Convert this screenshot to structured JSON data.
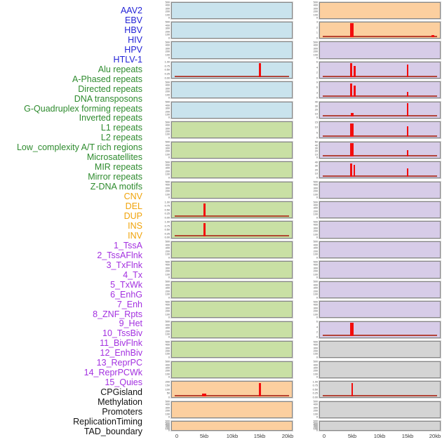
{
  "chart_data": {
    "type": "bar",
    "title": "",
    "description_visible_text_only": "Grid of 44 mini enrichment profiles (two columns of 22 panels) sharing a 0-20kb x axis; red bars mark enrichment peaks.",
    "x_axis": {
      "ticks": [
        "0",
        "5kb",
        "10kb",
        "15kb",
        "20kb"
      ],
      "range_kb": [
        0,
        20
      ]
    },
    "colors": {
      "virus": "#2323d6",
      "repeat": "#2e8b2e",
      "sv": "#f0a30a",
      "chromatin": "#a330e0",
      "other": "#111111",
      "panel_virus": "#c9e3ed",
      "panel_repeat": "#c9e0a4",
      "panel_sv": "#fccf9f",
      "panel_chromatin": "#d7cce8",
      "panel_other": "#d4d4d4",
      "spike_red": "#f30d0d",
      "baseline_red": "#ac2c1c"
    },
    "rows": [
      {
        "label": "AAV2",
        "group": "virus",
        "yticks": [
          "500",
          "400",
          "300",
          "200",
          "100",
          "0"
        ],
        "baseline": false,
        "bars": []
      },
      {
        "label": "EBV",
        "group": "virus",
        "yticks": [
          "500",
          "400",
          "300",
          "200",
          "100",
          "0"
        ],
        "baseline": false,
        "bars": []
      },
      {
        "label": "HBV",
        "group": "virus",
        "yticks": [
          "500",
          "400",
          "300",
          "200",
          "100",
          "0"
        ],
        "baseline": false,
        "bars": []
      },
      {
        "label": "HIV",
        "group": "virus",
        "yticks": [
          "1.00",
          "0.75",
          "0.50",
          "0.25",
          "0.00"
        ],
        "baseline": true,
        "bars": [
          {
            "x_kb": 15,
            "h": 1.0,
            "w": 3
          }
        ]
      },
      {
        "label": "HPV",
        "group": "virus",
        "yticks": [
          "500",
          "400",
          "300",
          "200",
          "100",
          "0"
        ],
        "baseline": false,
        "bars": []
      },
      {
        "label": "HTLV-1",
        "group": "virus",
        "yticks": [
          "500",
          "400",
          "300",
          "200",
          "100",
          "0"
        ],
        "baseline": false,
        "bars": []
      },
      {
        "label": "Alu repeats",
        "group": "repeat",
        "yticks": [
          "500",
          "400",
          "300",
          "200",
          "100",
          "0"
        ],
        "baseline": false,
        "bars": []
      },
      {
        "label": "A-Phased repeats",
        "group": "repeat",
        "yticks": [
          "500",
          "400",
          "300",
          "200",
          "100",
          "0"
        ],
        "baseline": false,
        "bars": []
      },
      {
        "label": "Directed repeats",
        "group": "repeat",
        "yticks": [
          "500",
          "400",
          "300",
          "200",
          "100",
          "0"
        ],
        "baseline": false,
        "bars": []
      },
      {
        "label": "DNA transposons",
        "group": "repeat",
        "yticks": [
          "500",
          "400",
          "300",
          "200",
          "100",
          "0"
        ],
        "baseline": false,
        "bars": []
      },
      {
        "label": "G-Quadruplex forming repeats",
        "group": "repeat",
        "yticks": [
          "1.00",
          "0.75",
          "0.50",
          "0.25",
          "0.00"
        ],
        "baseline": true,
        "bars": [
          {
            "x_kb": 5,
            "h": 1.0,
            "w": 3
          }
        ]
      },
      {
        "label": "Inverted repeats",
        "group": "repeat",
        "yticks": [
          "1.00",
          "0.75",
          "0.50",
          "0.25",
          "0.00"
        ],
        "baseline": true,
        "bars": [
          {
            "x_kb": 5,
            "h": 1.0,
            "w": 3
          }
        ]
      },
      {
        "label": "L1 repeats",
        "group": "repeat",
        "yticks": [
          "500",
          "400",
          "300",
          "200",
          "100",
          "0"
        ],
        "baseline": false,
        "bars": []
      },
      {
        "label": "L2 repeats",
        "group": "repeat",
        "yticks": [
          "500",
          "400",
          "300",
          "200",
          "100",
          "0"
        ],
        "baseline": false,
        "bars": []
      },
      {
        "label": "Low_complexity A/T rich regions",
        "group": "repeat",
        "yticks": [
          "500",
          "400",
          "300",
          "200",
          "100",
          "0"
        ],
        "baseline": false,
        "bars": []
      },
      {
        "label": "Microsatellites",
        "group": "repeat",
        "yticks": [
          "500",
          "400",
          "300",
          "200",
          "100",
          "0"
        ],
        "baseline": false,
        "bars": []
      },
      {
        "label": "MIR repeats",
        "group": "repeat",
        "yticks": [
          "500",
          "400",
          "300",
          "200",
          "100",
          "0"
        ],
        "baseline": false,
        "bars": []
      },
      {
        "label": "Mirror repeats",
        "group": "repeat",
        "yticks": [
          "500",
          "400",
          "300",
          "200",
          "100",
          "0"
        ],
        "baseline": false,
        "bars": []
      },
      {
        "label": "Z-DNA motifs",
        "group": "repeat",
        "yticks": [
          "500",
          "400",
          "300",
          "200",
          "100",
          "0"
        ],
        "baseline": false,
        "bars": []
      },
      {
        "label": "CNV",
        "group": "sv",
        "yticks": [
          "200",
          "150",
          "100",
          "50",
          "0"
        ],
        "baseline": true,
        "bars": [
          {
            "x_kb": 5,
            "h": 0.18,
            "w": 6
          },
          {
            "x_kb": 15,
            "h": 1.0,
            "w": 3
          }
        ]
      },
      {
        "label": "DEL",
        "group": "sv",
        "yticks": [
          "500",
          "400",
          "300",
          "200",
          "100",
          "0"
        ],
        "baseline": false,
        "bars": []
      },
      {
        "label": "DUP",
        "group": "sv",
        "yticks": [
          "600",
          "500",
          "400",
          "300",
          "200",
          "100",
          "0"
        ],
        "baseline": false,
        "bars": []
      },
      {
        "label": "INS",
        "group": "sv",
        "yticks": [
          "500",
          "400",
          "300",
          "200",
          "100",
          "0"
        ],
        "baseline": false,
        "bars": []
      },
      {
        "label": "INV",
        "group": "sv",
        "yticks": [
          "3",
          "2",
          "1",
          "0"
        ],
        "baseline": true,
        "bars": [
          {
            "x_kb": 5,
            "h": 1.0,
            "w": 5
          },
          {
            "x_kb": 19.6,
            "h": 0.12,
            "w": 4
          }
        ]
      },
      {
        "label": "1_TssA",
        "group": "chromatin",
        "yticks": [
          "500",
          "400",
          "300",
          "200",
          "100",
          "0"
        ],
        "baseline": false,
        "bars": []
      },
      {
        "label": "2_TssAFlnk",
        "group": "chromatin",
        "yticks": [
          "6",
          "4",
          "2",
          "0"
        ],
        "baseline": true,
        "bars": [
          {
            "x_kb": 4.9,
            "h": 1.0,
            "w": 3
          },
          {
            "x_kb": 5.5,
            "h": 0.8,
            "w": 3
          },
          {
            "x_kb": 15,
            "h": 0.9,
            "w": 2
          }
        ]
      },
      {
        "label": "3_TxFlnk",
        "group": "chromatin",
        "yticks": [
          "9",
          "6",
          "3",
          "0"
        ],
        "baseline": true,
        "bars": [
          {
            "x_kb": 4.9,
            "h": 1.0,
            "w": 3
          },
          {
            "x_kb": 5.5,
            "h": 0.85,
            "w": 3
          },
          {
            "x_kb": 15,
            "h": 0.38,
            "w": 2
          }
        ]
      },
      {
        "label": "4_Tx",
        "group": "chromatin",
        "yticks": [
          "40",
          "30",
          "20",
          "10",
          "0"
        ],
        "baseline": true,
        "bars": [
          {
            "x_kb": 5,
            "h": 0.28,
            "w": 4
          },
          {
            "x_kb": 15,
            "h": 1.0,
            "w": 2
          }
        ]
      },
      {
        "label": "5_TxWk",
        "group": "chromatin",
        "yticks": [
          "15",
          "10",
          "5",
          "0"
        ],
        "baseline": true,
        "bars": [
          {
            "x_kb": 5,
            "h": 1.0,
            "w": 5
          },
          {
            "x_kb": 15,
            "h": 0.8,
            "w": 2
          }
        ]
      },
      {
        "label": "6_EnhG",
        "group": "chromatin",
        "yticks": [
          "50",
          "40",
          "30",
          "20",
          "10",
          "0"
        ],
        "baseline": true,
        "bars": [
          {
            "x_kb": 5,
            "h": 1.0,
            "w": 5
          },
          {
            "x_kb": 15,
            "h": 0.5,
            "w": 2
          }
        ]
      },
      {
        "label": "7_Enh",
        "group": "chromatin",
        "yticks": [
          "40",
          "30",
          "20",
          "10",
          "0"
        ],
        "baseline": true,
        "bars": [
          {
            "x_kb": 4.9,
            "h": 1.0,
            "w": 3
          },
          {
            "x_kb": 5.5,
            "h": 0.85,
            "w": 2
          },
          {
            "x_kb": 15,
            "h": 0.62,
            "w": 2
          }
        ]
      },
      {
        "label": "8_ZNF_Rpts",
        "group": "chromatin",
        "yticks": [
          "500",
          "400",
          "300",
          "200",
          "100",
          "0"
        ],
        "baseline": false,
        "bars": []
      },
      {
        "label": "9_Het",
        "group": "chromatin",
        "yticks": [
          "500",
          "400",
          "300",
          "200",
          "100",
          "0"
        ],
        "baseline": false,
        "bars": []
      },
      {
        "label": "10_TssBiv",
        "group": "chromatin",
        "yticks": [
          "500",
          "400",
          "300",
          "200",
          "100",
          "0"
        ],
        "baseline": false,
        "bars": []
      },
      {
        "label": "11_BivFlnk",
        "group": "chromatin",
        "yticks": [
          "500",
          "400",
          "300",
          "200",
          "100",
          "0"
        ],
        "baseline": false,
        "bars": []
      },
      {
        "label": "12_EnhBiv",
        "group": "chromatin",
        "yticks": [
          "500",
          "400",
          "300",
          "200",
          "100",
          "0"
        ],
        "baseline": false,
        "bars": []
      },
      {
        "label": "13_ReprPC",
        "group": "chromatin",
        "yticks": [
          "500",
          "400",
          "300",
          "200",
          "100",
          "0"
        ],
        "baseline": false,
        "bars": []
      },
      {
        "label": "14_ReprPCWk",
        "group": "chromatin",
        "yticks": [
          "500",
          "400",
          "300",
          "200",
          "100",
          "0"
        ],
        "baseline": false,
        "bars": []
      },
      {
        "label": "15_Quies",
        "group": "chromatin",
        "yticks": [
          "6",
          "4",
          "2",
          "0"
        ],
        "baseline": true,
        "bars": [
          {
            "x_kb": 5,
            "h": 1.0,
            "w": 5
          }
        ]
      },
      {
        "label": "CPGisland",
        "group": "other",
        "yticks": [
          "500",
          "400",
          "300",
          "200",
          "100",
          "0"
        ],
        "baseline": false,
        "bars": []
      },
      {
        "label": "Methylation",
        "group": "other",
        "yticks": [
          "500",
          "400",
          "300",
          "200",
          "100",
          "0"
        ],
        "baseline": false,
        "bars": []
      },
      {
        "label": "Promoters",
        "group": "other",
        "yticks": [
          "1.00",
          "0.75",
          "0.50",
          "0.25",
          "0.00"
        ],
        "baseline": true,
        "bars": [
          {
            "x_kb": 5,
            "h": 1.0,
            "w": 2
          }
        ]
      },
      {
        "label": "ReplicationTiming",
        "group": "other",
        "yticks": [
          "500",
          "400",
          "300",
          "200",
          "100",
          "0"
        ],
        "baseline": false,
        "bars": []
      },
      {
        "label": "TAD_boundary",
        "group": "other",
        "yticks": [
          "600",
          "500",
          "400",
          "300",
          "200",
          "100",
          "0"
        ],
        "baseline": false,
        "bars": []
      }
    ],
    "layout_note_visible": "left panel column = rows 1-22 top to bottom, right panel column = rows 23-44"
  }
}
